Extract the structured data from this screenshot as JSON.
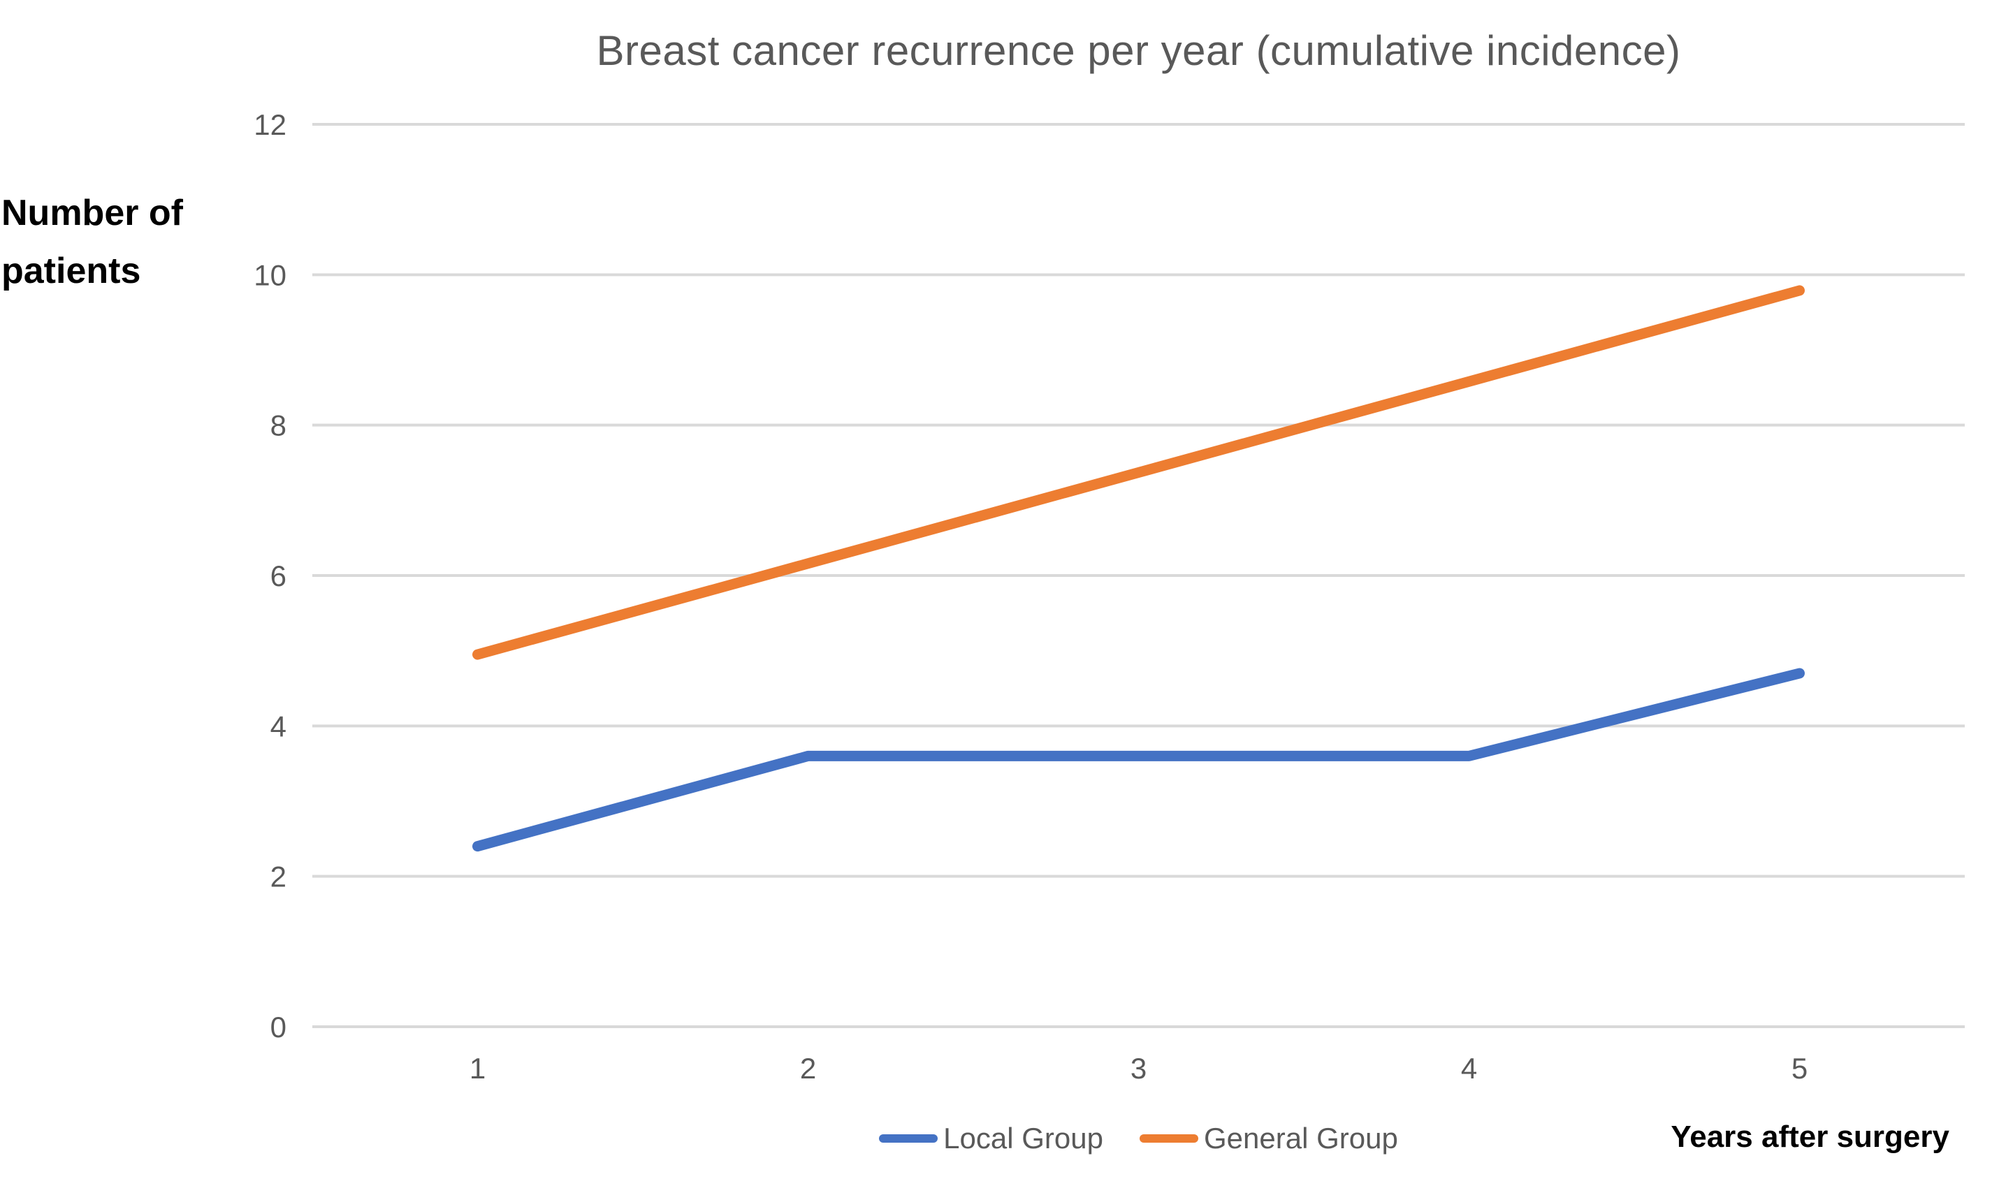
{
  "chart_data": {
    "type": "line",
    "title": "Breast cancer recurrence per year (cumulative incidence)",
    "ylabel": "Number of patients",
    "xlabel": "Years after surgery",
    "x": [
      1,
      2,
      3,
      4,
      5
    ],
    "series": [
      {
        "name": "Local Group",
        "color": "#4472C4",
        "values": [
          2.4,
          3.6,
          3.6,
          3.6,
          4.7
        ]
      },
      {
        "name": "General Group",
        "color": "#ED7D31",
        "values": [
          4.95,
          6.16,
          7.37,
          8.58,
          9.79
        ]
      }
    ],
    "ylim": [
      0,
      12
    ],
    "yticks": [
      0,
      2,
      4,
      6,
      8,
      10,
      12
    ],
    "grid": "horizontal",
    "gridline_color": "#D9D9D9",
    "tick_label_color": "#595959",
    "title_color": "#595959",
    "axis_title_color": "#000000",
    "legend_position": "bottom",
    "background": "#FFFFFF"
  }
}
